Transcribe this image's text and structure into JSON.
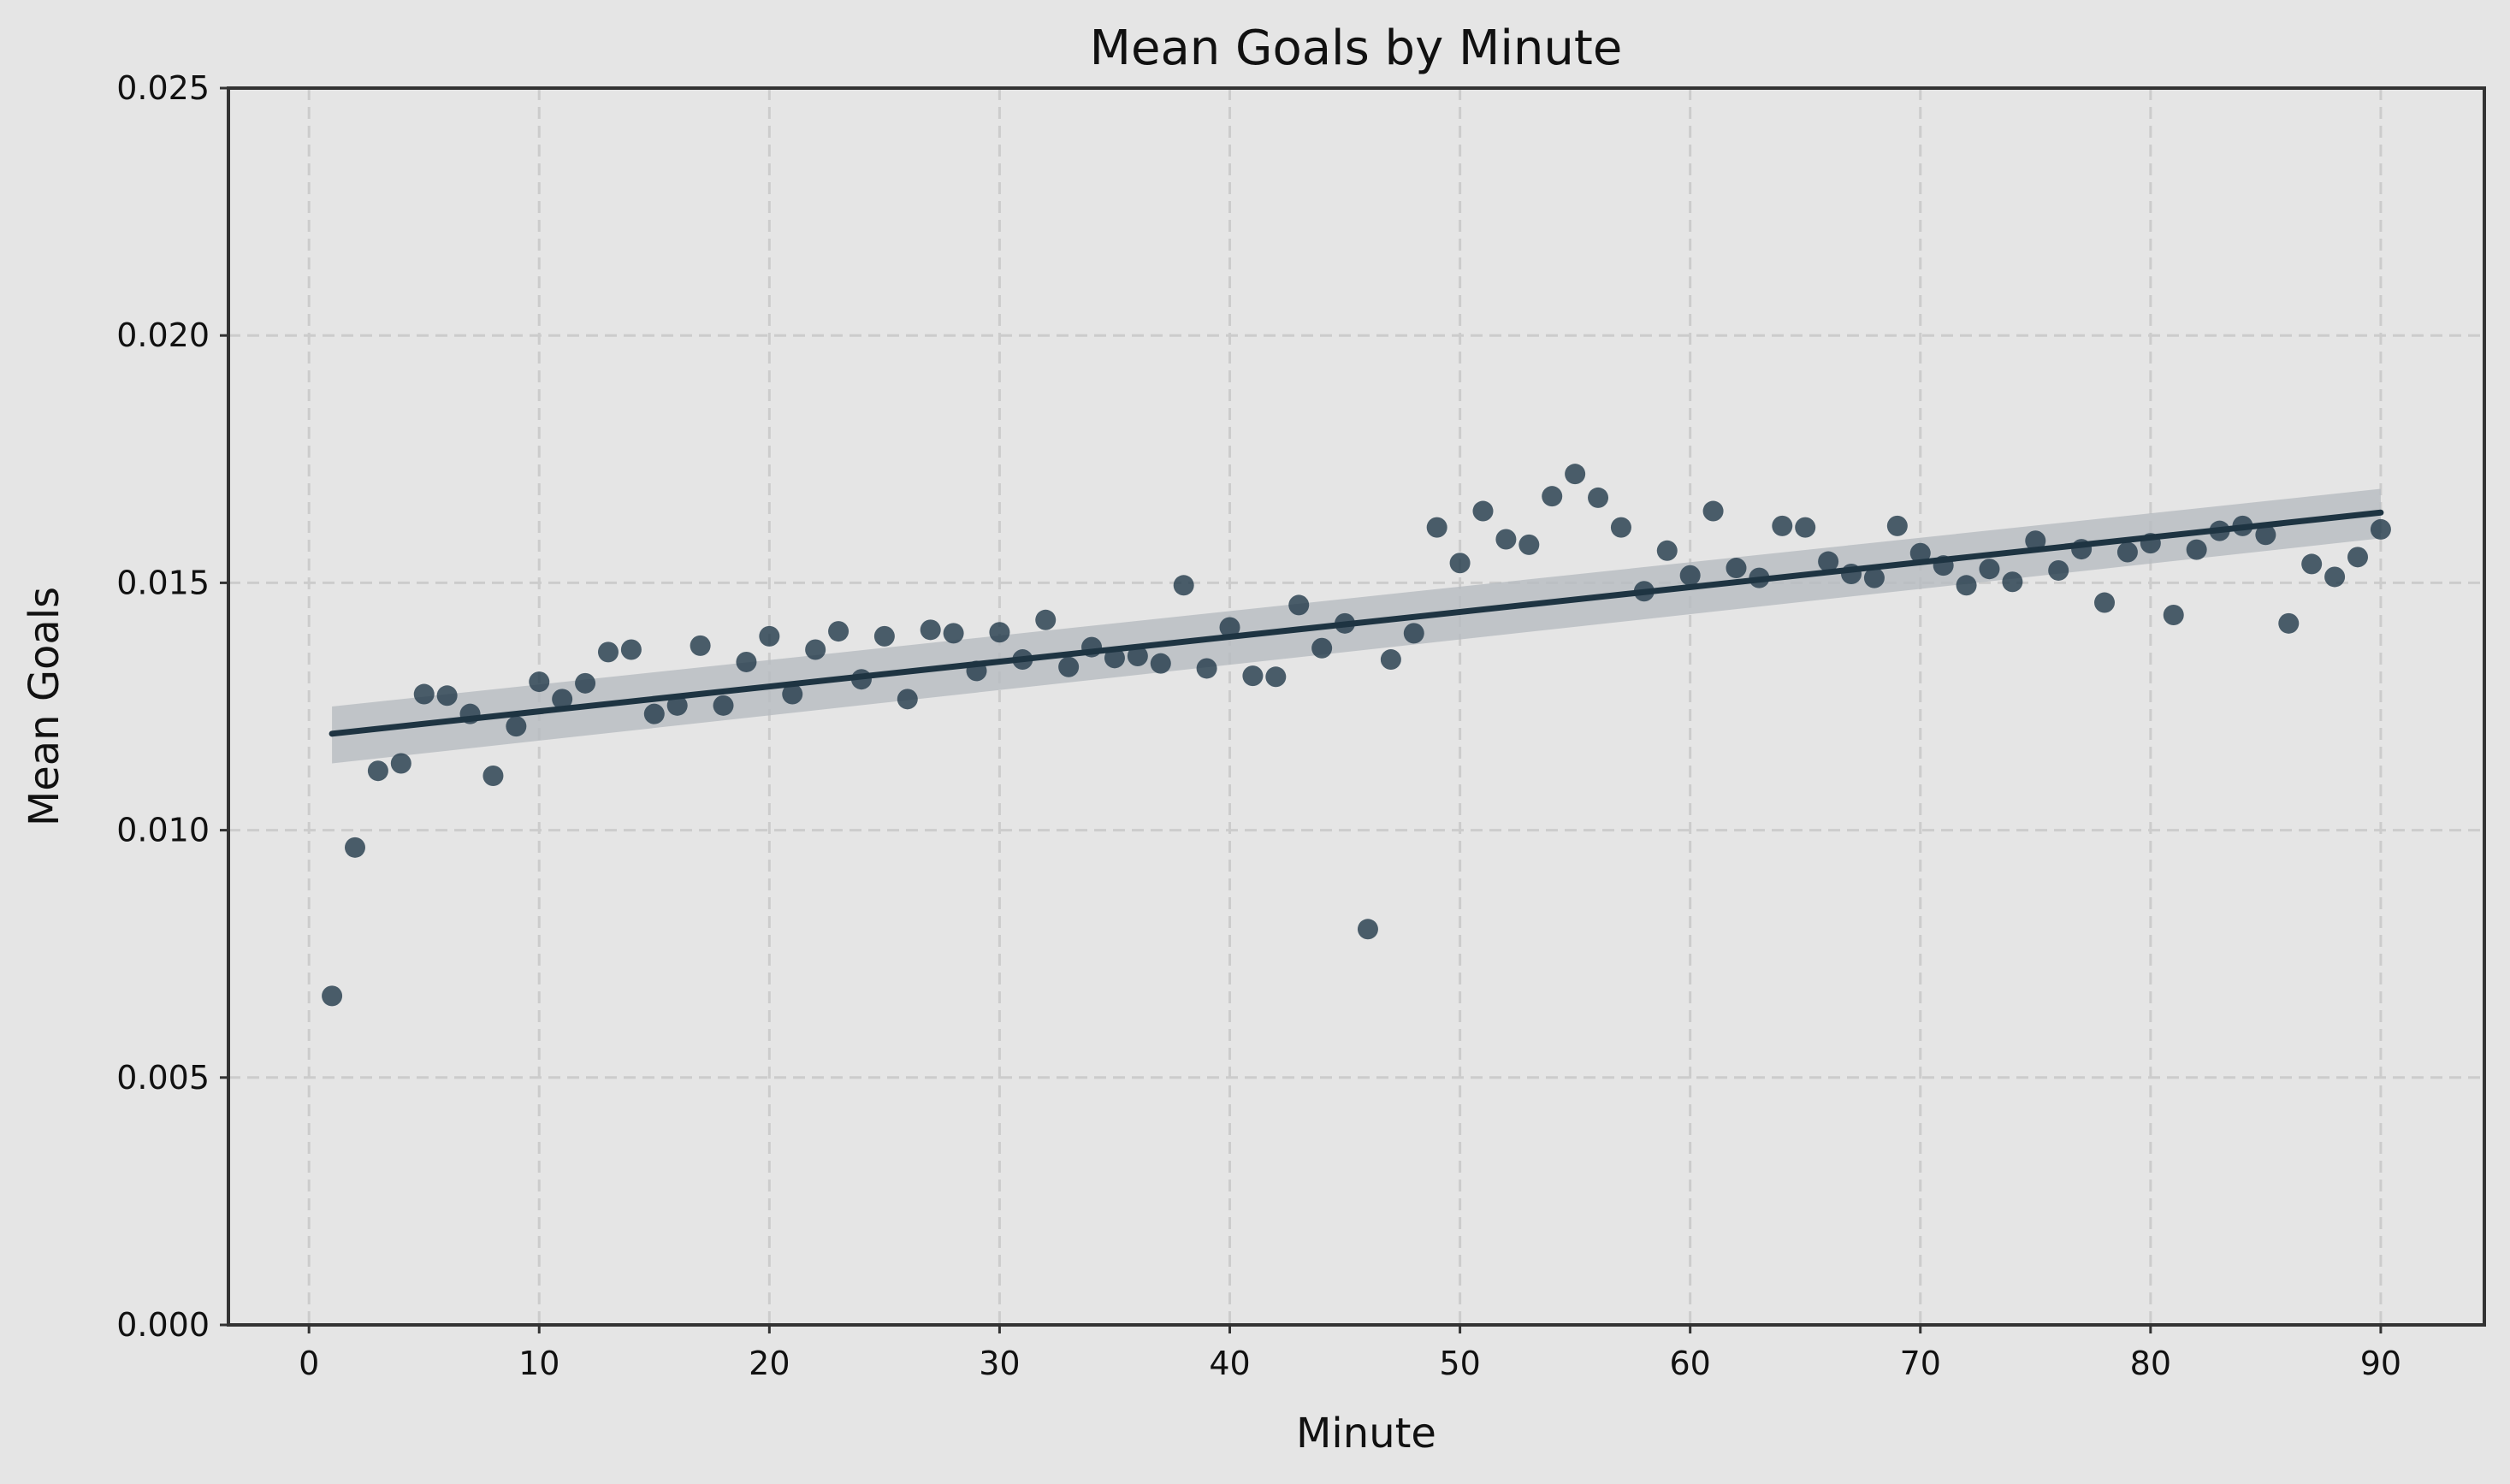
{
  "chart_data": {
    "type": "scatter",
    "title": "Mean Goals by Minute",
    "xlabel": "Minute",
    "ylabel": "Mean Goals",
    "xlim": [
      -3.5,
      94.5
    ],
    "ylim": [
      0,
      0.025
    ],
    "x_ticks": [
      0,
      10,
      20,
      30,
      40,
      50,
      60,
      70,
      80,
      90
    ],
    "y_ticks": [
      0,
      0.005,
      0.01,
      0.015,
      0.02,
      0.025
    ],
    "x_tick_labels": [
      "0",
      "10",
      "20",
      "30",
      "40",
      "50",
      "60",
      "70",
      "80",
      "90"
    ],
    "y_tick_labels": [
      "0.000",
      "0.005",
      "0.010",
      "0.015",
      "0.020",
      "0.025"
    ],
    "grid": true,
    "legend": "none",
    "colors": {
      "points": "#263d4d",
      "line": "#1e3442",
      "band": "#b7bcc0",
      "background": "#e5e5e5",
      "grid": "#cccccc"
    },
    "x": [
      1,
      2,
      3,
      4,
      5,
      6,
      7,
      8,
      9,
      10,
      11,
      12,
      13,
      14,
      15,
      16,
      17,
      18,
      19,
      20,
      21,
      22,
      23,
      24,
      25,
      26,
      27,
      28,
      29,
      30,
      31,
      32,
      33,
      34,
      35,
      36,
      37,
      38,
      39,
      40,
      41,
      42,
      43,
      44,
      45,
      46,
      47,
      48,
      49,
      50,
      51,
      52,
      53,
      54,
      55,
      56,
      57,
      58,
      59,
      60,
      61,
      62,
      63,
      64,
      65,
      66,
      67,
      68,
      69,
      70,
      71,
      72,
      73,
      74,
      75,
      76,
      77,
      78,
      79,
      80,
      81,
      82,
      83,
      84,
      85,
      86,
      87,
      88,
      89,
      90
    ],
    "y": [
      0.00665,
      0.00965,
      0.0112,
      0.01135,
      0.01275,
      0.01272,
      0.01235,
      0.0111,
      0.0121,
      0.013,
      0.01265,
      0.01297,
      0.0136,
      0.01365,
      0.01235,
      0.01252,
      0.01373,
      0.01252,
      0.0134,
      0.01392,
      0.01275,
      0.01365,
      0.01402,
      0.01305,
      0.01392,
      0.01265,
      0.01405,
      0.01398,
      0.01322,
      0.014,
      0.01345,
      0.01425,
      0.0133,
      0.0137,
      0.01348,
      0.01352,
      0.01337,
      0.01495,
      0.01327,
      0.0141,
      0.01312,
      0.0131,
      0.01455,
      0.01368,
      0.01418,
      0.008,
      0.01345,
      0.01398,
      0.01612,
      0.0154,
      0.01645,
      0.01588,
      0.01577,
      0.01675,
      0.0172,
      0.01672,
      0.01612,
      0.01483,
      0.01565,
      0.01515,
      0.01645,
      0.0153,
      0.0151,
      0.01615,
      0.01612,
      0.01543,
      0.01518,
      0.0151,
      0.01615,
      0.0156,
      0.01535,
      0.01495,
      0.01528,
      0.01502,
      0.01585,
      0.01525,
      0.01568,
      0.0146,
      0.01562,
      0.0158,
      0.01435,
      0.01567,
      0.01605,
      0.01615,
      0.01597,
      0.01418,
      0.01538,
      0.01512,
      0.01552,
      0.01608
    ],
    "regression": {
      "x": [
        1,
        90
      ],
      "y": [
        0.01195,
        0.01642
      ],
      "ci_low": [
        0.01135,
        0.0159
      ],
      "ci_high": [
        0.0125,
        0.0169
      ]
    }
  }
}
